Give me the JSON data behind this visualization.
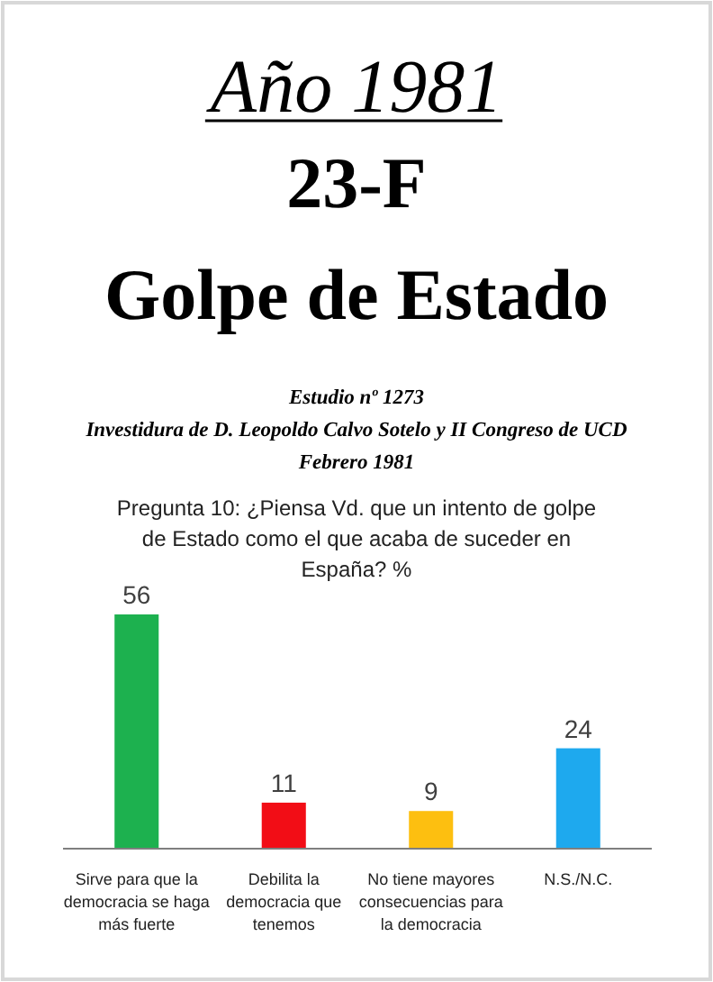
{
  "chart_data": {
    "type": "bar",
    "title": "Año 1981",
    "subtitle": "23-F Golpe de Estado",
    "annotations": [
      "Estudio nº 1273",
      "Investidura de D. Leopoldo Calvo Sotelo y II Congreso de UCD",
      "Febrero 1981",
      "Pregunta 10: ¿Piensa Vd. que un intento de golpe de Estado como el que acaba de suceder en España? %"
    ],
    "categories": [
      "Sirve para que la democracia se haga más fuerte",
      "Debilita la democracia que tenemos",
      "No tiene mayores consecuencias para la democracia",
      "N.S./N.C."
    ],
    "values": [
      56,
      11,
      9,
      24
    ],
    "colors": [
      "#1db14f",
      "#f20d16",
      "#fdbf10",
      "#1ea9ee"
    ],
    "ylim": [
      0,
      56
    ],
    "data_labels": true
  }
}
